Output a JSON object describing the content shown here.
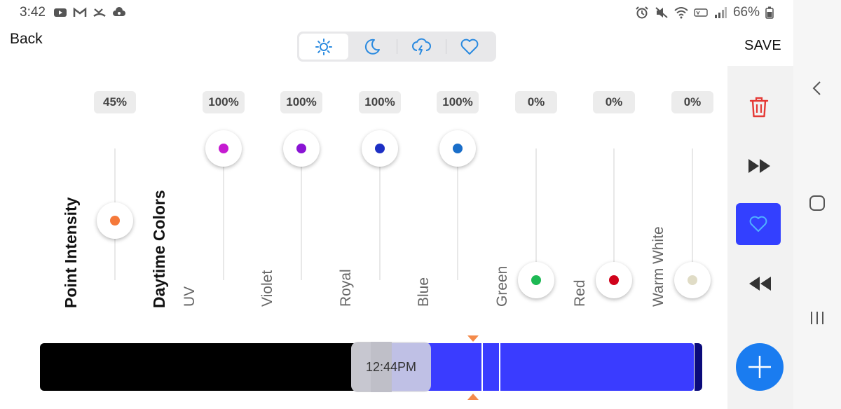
{
  "status_bar": {
    "time": "3:42",
    "battery": "66%",
    "left_icons": [
      "youtube-icon",
      "gmail-icon",
      "missed-call-icon",
      "cloud-icon"
    ],
    "right_icons": [
      "alarm-icon",
      "mute-icon",
      "wifi-icon",
      "volte-icon",
      "signal-icon",
      "battery-icon"
    ]
  },
  "header": {
    "back_label": "Back",
    "save_label": "SAVE"
  },
  "mode_tabs": [
    {
      "icon": "sun-icon",
      "active": true
    },
    {
      "icon": "moon-icon",
      "active": false
    },
    {
      "icon": "storm-icon",
      "active": false
    },
    {
      "icon": "heart-icon",
      "active": false
    }
  ],
  "sections": {
    "point_intensity": "Point Intensity",
    "daytime_colors": "Daytime Colors"
  },
  "channels": [
    {
      "name": "",
      "value": "45%",
      "level": 0.45,
      "color": "#f5793a"
    },
    {
      "name": "UV",
      "value": "100%",
      "level": 1.0,
      "color": "#c51bd1"
    },
    {
      "name": "Violet",
      "value": "100%",
      "level": 1.0,
      "color": "#8a14d4"
    },
    {
      "name": "Royal",
      "value": "100%",
      "level": 1.0,
      "color": "#1d2fc4"
    },
    {
      "name": "Blue",
      "value": "100%",
      "level": 1.0,
      "color": "#1a6ec9"
    },
    {
      "name": "Green",
      "value": "0%",
      "level": 0.0,
      "color": "#1db954"
    },
    {
      "name": "Red",
      "value": "0%",
      "level": 0.0,
      "color": "#d0021b"
    },
    {
      "name": "Warm White",
      "value": "0%",
      "level": 0.0,
      "color": "#e0dcc6"
    }
  ],
  "timeline": {
    "current_time": "12:44PM"
  },
  "right_panel": {
    "actions": [
      "trash-icon",
      "fast-forward-icon",
      "heart-icon",
      "rewind-icon",
      "add-icon"
    ]
  },
  "colors": {
    "accent_blue": "#3340ff",
    "add_blue": "#1a7cf0",
    "delete_red": "#e53935",
    "marker_orange": "#f48a4a"
  }
}
